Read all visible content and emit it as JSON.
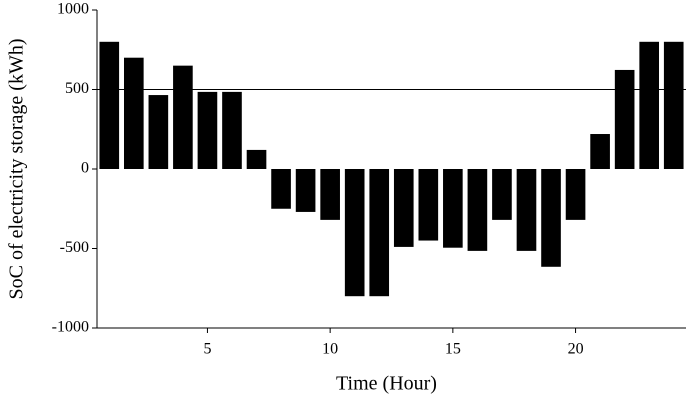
{
  "chart_data": {
    "type": "bar",
    "x_label": "Time (Hour)",
    "y_label": "SoC of electricity storage (kWh)",
    "x": [
      1,
      2,
      3,
      4,
      5,
      6,
      7,
      8,
      9,
      10,
      11,
      12,
      13,
      14,
      15,
      16,
      17,
      18,
      19,
      20,
      21,
      22,
      23,
      24
    ],
    "values": [
      800,
      700,
      465,
      650,
      485,
      485,
      120,
      -250,
      -270,
      -320,
      -800,
      -800,
      -490,
      -450,
      -495,
      -515,
      -320,
      -515,
      -615,
      -320,
      220,
      623,
      800,
      800
    ],
    "color": "#000000",
    "xlim": [
      0.5,
      24.5
    ],
    "xticks": [
      5,
      10,
      15,
      20
    ],
    "ylim": [
      -1000,
      1000
    ],
    "yticks": [
      -1000,
      -500,
      0,
      500,
      1000
    ],
    "reference_line": 500
  }
}
